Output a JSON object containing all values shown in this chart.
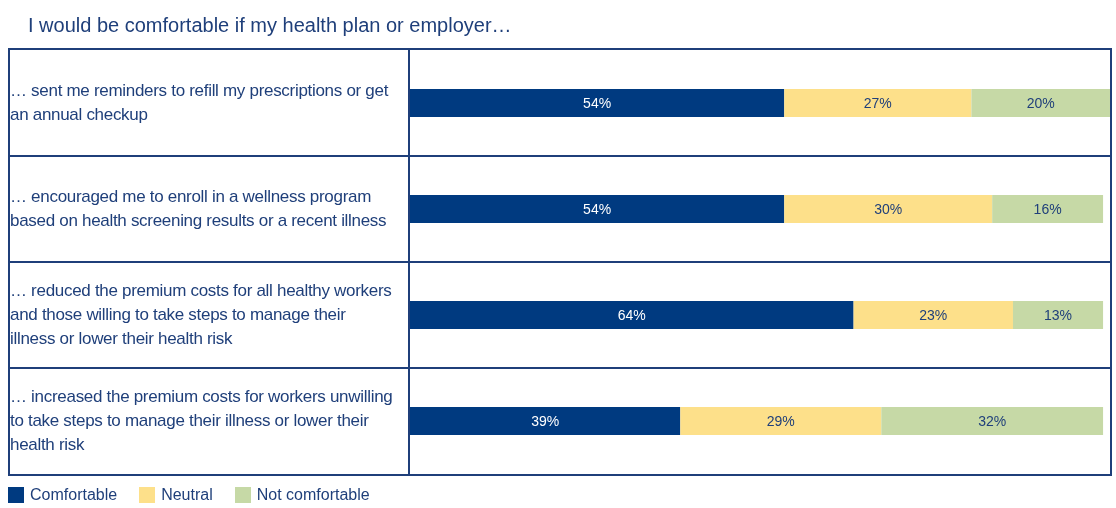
{
  "chart_data": {
    "type": "bar",
    "orientation": "horizontal",
    "stacked": true,
    "title": "I would be comfortable if my health plan or employer…",
    "categories": [
      "… sent me reminders to refill my prescriptions or get an annual checkup",
      "… encouraged me to enroll in a wellness program based on health screening results or a recent illness",
      "… reduced the premium costs for all healthy workers and those willing to take steps to manage their illness or lower their health risk",
      "… increased the premium costs for workers unwilling to take steps to manage their illness or lower their health risk"
    ],
    "series": [
      {
        "name": "Comfortable",
        "color": "#003a80",
        "values": [
          54,
          54,
          64,
          39
        ],
        "value_labels": [
          "54%",
          "54%",
          "64%",
          "39%"
        ]
      },
      {
        "name": "Neutral",
        "color": "#fde08a",
        "values": [
          27,
          30,
          23,
          29
        ],
        "value_labels": [
          "27%",
          "30%",
          "23%",
          "29%"
        ]
      },
      {
        "name": "Not comfortable",
        "color": "#c6d9a6",
        "values": [
          20,
          16,
          13,
          32
        ],
        "value_labels": [
          "20%",
          "16%",
          "13%",
          "32%"
        ]
      }
    ],
    "xlim": [
      0,
      101
    ],
    "tick_labels": "y",
    "legend": "bottom left"
  }
}
